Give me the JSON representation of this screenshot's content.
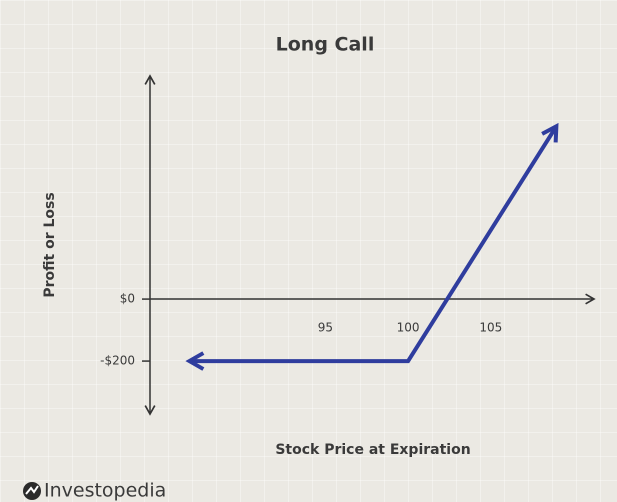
{
  "chart_data": {
    "type": "line",
    "title": "Long Call",
    "xlabel": "Stock Price at Expiration",
    "ylabel": "Profit or Loss",
    "x": [
      86.9,
      100,
      108.9
    ],
    "series": [
      {
        "color": "#2f3d9e",
        "values": [
          -200,
          -200,
          552
        ]
      }
    ],
    "xlim": [
      84.4,
      111.3
    ],
    "ylim": [
      -374,
      723
    ],
    "xticks": [
      95,
      100,
      105
    ],
    "yticks": [
      {
        "value": 0,
        "label": "$0"
      },
      {
        "value": -200,
        "label": "-$200"
      }
    ]
  },
  "brand": "Investopedia"
}
